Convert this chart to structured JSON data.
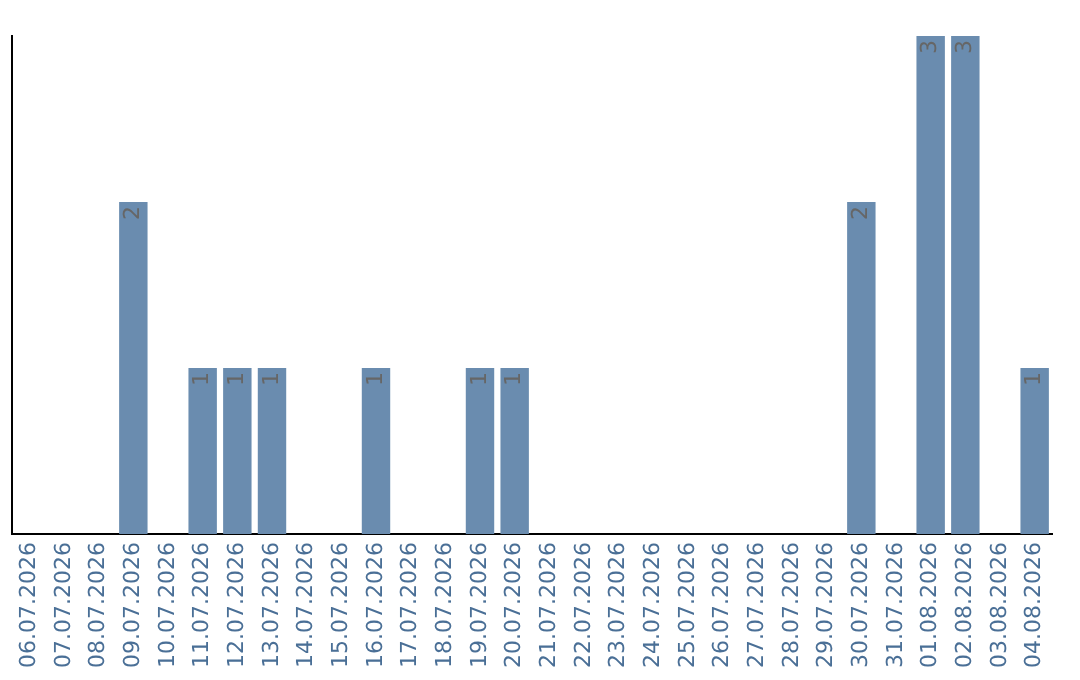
{
  "chart_data": {
    "type": "bar",
    "categories": [
      "06.07.2026",
      "07.07.2026",
      "08.07.2026",
      "09.07.2026",
      "10.07.2026",
      "11.07.2026",
      "12.07.2026",
      "13.07.2026",
      "14.07.2026",
      "15.07.2026",
      "16.07.2026",
      "17.07.2026",
      "18.07.2026",
      "19.07.2026",
      "20.07.2026",
      "21.07.2026",
      "22.07.2026",
      "23.07.2026",
      "24.07.2026",
      "25.07.2026",
      "26.07.2026",
      "27.07.2026",
      "28.07.2026",
      "29.07.2026",
      "30.07.2026",
      "31.07.2026",
      "01.08.2026",
      "02.08.2026",
      "03.08.2026",
      "04.08.2026"
    ],
    "values": [
      0,
      0,
      0,
      2,
      0,
      1,
      1,
      1,
      0,
      0,
      1,
      0,
      0,
      1,
      1,
      0,
      0,
      0,
      0,
      0,
      0,
      0,
      0,
      0,
      2,
      0,
      3,
      3,
      0,
      1
    ],
    "value_labels": [
      null,
      null,
      null,
      "2",
      null,
      "1",
      "1",
      "1",
      null,
      null,
      "1",
      null,
      null,
      "1",
      "1",
      null,
      null,
      null,
      null,
      null,
      null,
      null,
      null,
      null,
      "2",
      null,
      "3",
      "3",
      null,
      "1"
    ],
    "color": "#6a8caf",
    "ylim": [
      0,
      3
    ],
    "grid": false,
    "legend": false,
    "tick_labels": "x"
  }
}
